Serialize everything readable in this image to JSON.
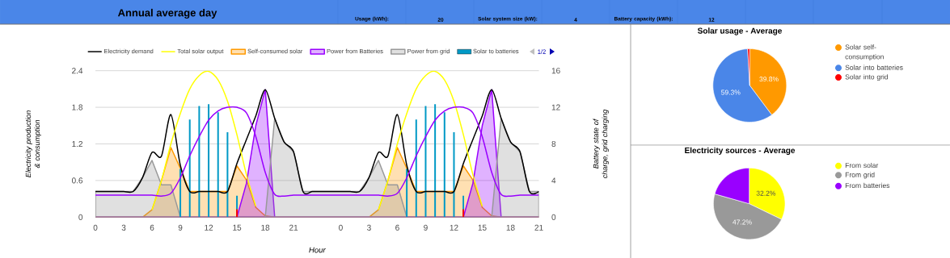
{
  "chart_data": [
    {
      "type": "other",
      "title": "Annual average day",
      "annotations": [
        "Usage (kWh):",
        "20",
        "Solar system size (kW):",
        "4",
        "Battery capacity (kWh):",
        "12"
      ]
    },
    {
      "type": "line",
      "xlabel": "Hour",
      "ylabel": "Electricity production & consumption",
      "y2label": "Battery state of charge, grid charging",
      "categories": [
        "0",
        null,
        null,
        "3",
        null,
        null,
        "6",
        null,
        null,
        "9",
        null,
        null,
        "12",
        null,
        null,
        "15",
        null,
        null,
        "18",
        null,
        null,
        "21",
        null,
        null,
        null,
        null,
        "0",
        null,
        null,
        "3",
        null,
        null,
        "6",
        null,
        null,
        "9",
        null,
        null,
        "12",
        null,
        null,
        "15",
        null,
        null,
        "18",
        null,
        null,
        "21"
      ],
      "ylim": [
        0,
        2.4
      ],
      "yticks": [
        0,
        0.6,
        1.2,
        1.8,
        2.4
      ],
      "y2lim": [
        0,
        16
      ],
      "y2ticks": [
        0,
        4,
        8,
        12,
        16
      ],
      "grid": "y",
      "legend": "top",
      "annotations": [
        "1/2"
      ],
      "series": [
        {
          "name": "Electricity demand",
          "type": "line",
          "color": "#000000",
          "values": [
            0.42,
            0.42,
            0.42,
            0.42,
            0.42,
            0.65,
            1.06,
            1.0,
            1.68,
            0.85,
            0.42,
            0.42,
            0.42,
            0.42,
            0.42,
            0.88,
            1.27,
            1.66,
            2.09,
            1.62,
            1.23,
            1.07,
            0.42,
            0.42,
            0.42,
            0.42,
            0.42,
            0.42,
            0.42,
            0.65,
            1.06,
            1.0,
            1.68,
            0.85,
            0.42,
            0.42,
            0.42,
            0.42,
            0.42,
            0.88,
            1.27,
            1.66,
            2.09,
            1.62,
            1.23,
            1.07,
            0.42,
            0.42
          ]
        },
        {
          "name": "Total solar output",
          "type": "line",
          "color": "#ffff00",
          "values": [
            null,
            null,
            null,
            null,
            null,
            null,
            0.12,
            0.6,
            1.2,
            1.7,
            2.1,
            2.32,
            2.39,
            2.25,
            1.9,
            1.35,
            0.7,
            0.18,
            null,
            null,
            null,
            null,
            null,
            null,
            null,
            null,
            null,
            null,
            null,
            null,
            0.12,
            0.6,
            1.2,
            1.7,
            2.1,
            2.32,
            2.39,
            2.25,
            1.9,
            1.35,
            0.7,
            0.18,
            null,
            null,
            null,
            null,
            null,
            null
          ]
        },
        {
          "name": "Self-consumed solar",
          "type": "area",
          "color": "#ff9900",
          "values": [
            0,
            0,
            0,
            0,
            0,
            0,
            0.12,
            0.6,
            1.14,
            0.8,
            0.42,
            0.42,
            0.42,
            0.42,
            0.42,
            0.84,
            0.61,
            0.16,
            0.02,
            0,
            0,
            0,
            0,
            0,
            0,
            0,
            0,
            0,
            0,
            0,
            0.12,
            0.6,
            1.14,
            0.8,
            0.42,
            0.42,
            0.42,
            0.42,
            0.42,
            0.84,
            0.61,
            0.16,
            0.02,
            0,
            0,
            0,
            0,
            0
          ]
        },
        {
          "name": "Power from Batteries",
          "type": "area",
          "color": "#9900ff",
          "values": [
            0,
            0,
            0,
            0,
            0,
            0,
            0,
            0,
            0,
            0,
            0,
            0,
            0,
            0,
            0,
            0,
            0.55,
            1.5,
            2.09,
            0,
            0,
            0,
            0,
            0,
            0,
            0,
            0,
            0,
            0,
            0,
            0,
            0,
            0,
            0,
            0,
            0,
            0,
            0,
            0,
            0,
            0.55,
            1.5,
            2.09,
            0,
            0,
            0,
            0,
            0
          ]
        },
        {
          "name": "Power from grid",
          "type": "area",
          "color": "#999999",
          "values": [
            0.42,
            0.42,
            0.42,
            0.42,
            0.42,
            0.65,
            0.93,
            0.53,
            0.53,
            0,
            0,
            0,
            0,
            0,
            0,
            0,
            0,
            0,
            0,
            1.62,
            1.23,
            1.07,
            0.42,
            0.42,
            0.42,
            0.42,
            0.42,
            0.42,
            0.42,
            0.65,
            0.93,
            0.53,
            0.53,
            0,
            0,
            0,
            0,
            0,
            0,
            0,
            0,
            0,
            0,
            1.62,
            1.23,
            1.07,
            0.42,
            0.42
          ]
        },
        {
          "name": "Solar to batteries",
          "type": "bar",
          "color": "#0099c6",
          "values": [
            null,
            null,
            null,
            null,
            null,
            null,
            null,
            null,
            null,
            0.79,
            1.6,
            1.82,
            1.85,
            1.72,
            1.39,
            0.35,
            null,
            null,
            null,
            null,
            null,
            null,
            null,
            null,
            null,
            null,
            null,
            null,
            null,
            null,
            null,
            null,
            null,
            0.79,
            1.6,
            1.82,
            1.85,
            1.72,
            1.39,
            0.35,
            null,
            null,
            null,
            null,
            null,
            null,
            null,
            null
          ]
        },
        {
          "type": "bar",
          "color": "#ff0000",
          "values": [
            null,
            null,
            null,
            null,
            null,
            null,
            null,
            null,
            null,
            null,
            null,
            null,
            null,
            null,
            null,
            0.13,
            null,
            null,
            null,
            null,
            null,
            null,
            null,
            null,
            null,
            null,
            null,
            null,
            null,
            null,
            null,
            null,
            null,
            null,
            null,
            null,
            null,
            null,
            null,
            0.13,
            null,
            null,
            null,
            null,
            null,
            null,
            null,
            null
          ]
        },
        {
          "type": "line",
          "axis": "y2",
          "color": "#9900ff",
          "values": [
            2.4,
            2.4,
            2.4,
            2.4,
            2.4,
            2.4,
            2.4,
            2.3,
            2.6,
            4.3,
            6.7,
            8.8,
            10.6,
            11.6,
            12.0,
            12.0,
            11.4,
            8.8,
            4.9,
            2.5,
            2.3,
            2.4,
            2.4,
            2.4,
            2.4,
            2.4,
            2.4,
            2.4,
            2.4,
            2.4,
            2.4,
            2.3,
            2.6,
            4.3,
            6.7,
            8.8,
            10.6,
            11.6,
            12.0,
            12.0,
            11.4,
            8.8,
            4.9,
            2.5,
            2.3,
            2.4,
            2.4,
            2.4
          ]
        }
      ]
    },
    {
      "type": "pie",
      "title": "Solar usage - Average",
      "legend": "right",
      "categories": [
        "Solar self-consumption",
        "Solar into batteries",
        "Solar into grid"
      ],
      "values": [
        39.8,
        59.3,
        0.9
      ],
      "colors": [
        "#ff9900",
        "#4a86e8",
        "#ff0000"
      ],
      "value_labels": [
        "39.8%",
        "59.3%",
        null
      ]
    },
    {
      "type": "pie",
      "title": "Electricity sources - Average",
      "legend": "right",
      "categories": [
        "From solar",
        "From grid",
        "From batteries"
      ],
      "values": [
        32.2,
        47.2,
        20.6
      ],
      "colors": [
        "#ffff00",
        "#999999",
        "#9900ff"
      ],
      "value_labels": [
        "32.2%",
        "47.2%",
        null
      ]
    }
  ]
}
